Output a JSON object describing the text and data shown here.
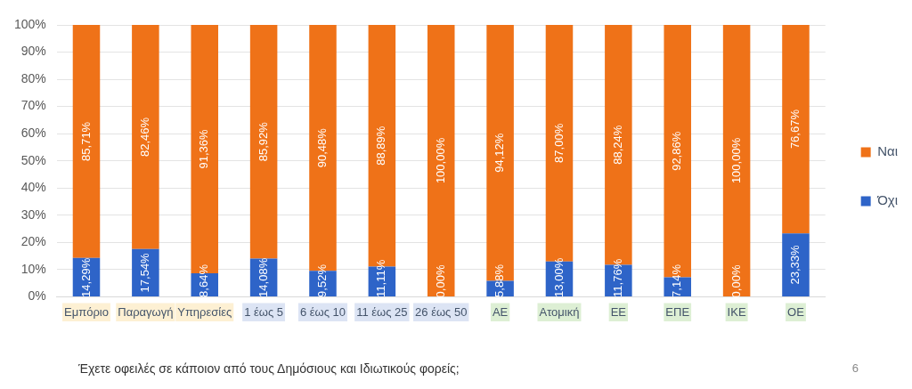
{
  "chart_data": {
    "type": "bar",
    "stacked": true,
    "title": "Έχετε οφειλές σε κάποιον από τους Δημόσιους και Ιδιωτικούς φορείς;",
    "annotations": [
      "6",
      {
        "text": "0,00%",
        "x": "26 έως 50",
        "y": 0
      },
      {
        "text": "0,00%",
        "x": "ΙΚΕ",
        "y": 0
      }
    ],
    "categories": [
      "Εμπόριο",
      "Παραγωγή",
      "Υπηρεσίες",
      "1 έως 5",
      "6 έως 10",
      "11 έως 25",
      "26 έως 50",
      "ΑΕ",
      "Ατομική",
      "ΕΕ",
      "ΕΠΕ",
      "ΙΚΕ",
      "ΟΕ"
    ],
    "series": [
      {
        "name": "Όχι",
        "color": "#2e64c8",
        "values": [
          14.29,
          17.54,
          8.64,
          14.08,
          9.52,
          11.11,
          0,
          5.88,
          13.0,
          11.76,
          7.14,
          0,
          23.33
        ],
        "value_labels": [
          "14,29%",
          "17,54%",
          "8,64%",
          "14,08%",
          "9,52%",
          "11,11%",
          null,
          "5,88%",
          "13,00%",
          "11,76%",
          "7,14%",
          null,
          "23,33%"
        ]
      },
      {
        "name": "Ναι",
        "color": "#ef7218",
        "values": [
          85.71,
          82.46,
          91.36,
          85.92,
          90.48,
          88.89,
          100,
          94.12,
          87.0,
          88.24,
          92.86,
          100,
          76.67
        ],
        "value_labels": [
          "85,71%",
          "82,46%",
          "91,36%",
          "85,92%",
          "90,48%",
          "88,89%",
          "100,00%",
          "94,12%",
          "87,00%",
          "88,24%",
          "92,86%",
          "100,00%",
          "76,67%"
        ]
      }
    ],
    "ylim": [
      0,
      100
    ],
    "yticks": [
      {
        "value": 0,
        "label": "0%"
      },
      {
        "value": 10,
        "label": "10%"
      },
      {
        "value": 20,
        "label": "20%"
      },
      {
        "value": 30,
        "label": "30%"
      },
      {
        "value": 40,
        "label": "40%"
      },
      {
        "value": 50,
        "label": "50%"
      },
      {
        "value": 60,
        "label": "60%"
      },
      {
        "value": 70,
        "label": "70%"
      },
      {
        "value": 80,
        "label": "80%"
      },
      {
        "value": 90,
        "label": "90%"
      },
      {
        "value": 100,
        "label": "100%"
      }
    ],
    "grid": "y",
    "legend": "right"
  }
}
